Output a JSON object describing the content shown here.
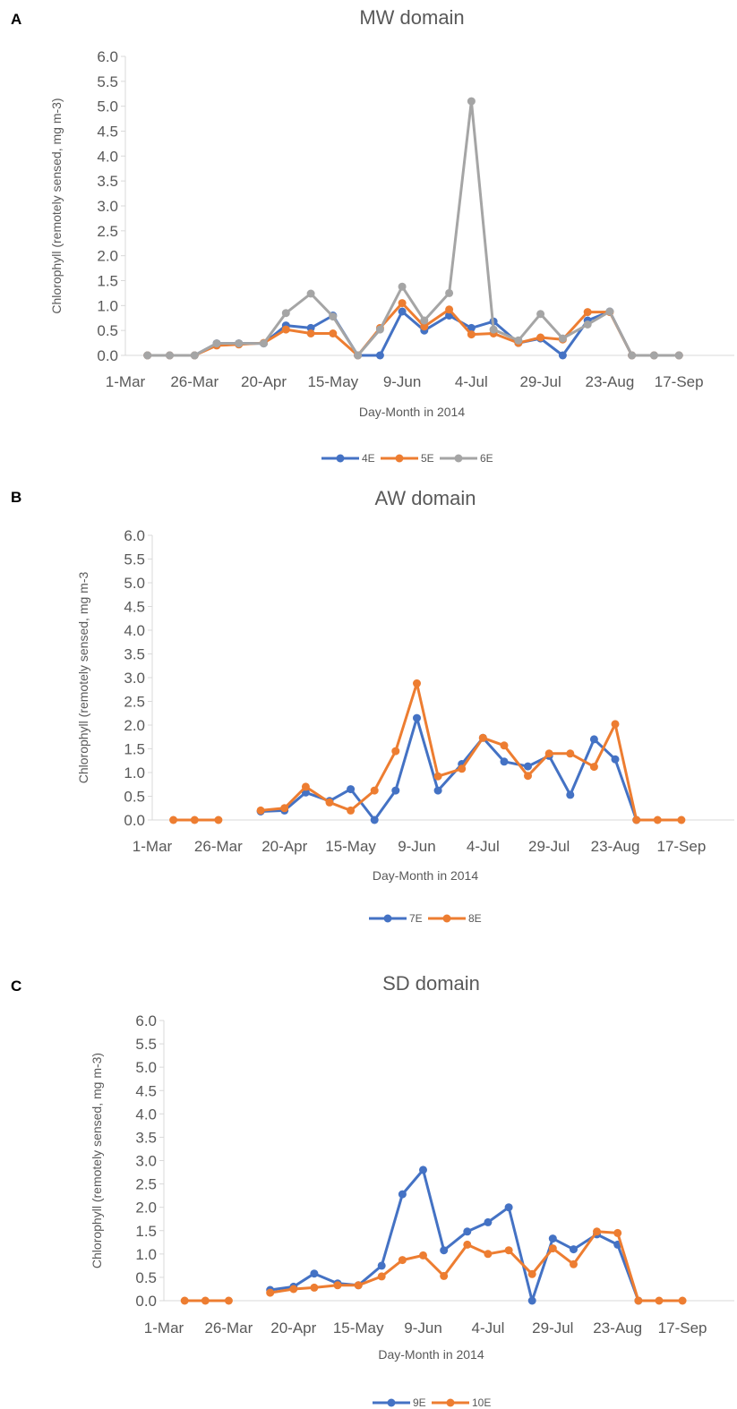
{
  "panels": [
    {
      "letter": "A"
    },
    {
      "letter": "B"
    },
    {
      "letter": "C"
    }
  ],
  "chart_data": [
    {
      "type": "line",
      "title": "MW domain",
      "xlabel": "Day-Month in 2014",
      "ylabel": "Chlorophyll (remotely sensed, mg m-3)",
      "x_tick_labels": [
        "1-Mar",
        "26-Mar",
        "20-Apr",
        "15-May",
        "9-Jun",
        "4-Jul",
        "29-Jul",
        "23-Aug",
        "17-Sep"
      ],
      "y_tick_labels": [
        "0.0",
        "0.5",
        "1.0",
        "1.5",
        "2.0",
        "2.5",
        "3.0",
        "3.5",
        "4.0",
        "4.5",
        "5.0",
        "5.5",
        "6.0"
      ],
      "ylim": [
        0,
        6
      ],
      "xlim": [
        "2014-03-01",
        "2014-10-07"
      ],
      "legend_position": "bottom",
      "grid": false,
      "x": [
        "2014-03-09",
        "2014-03-17",
        "2014-03-26",
        "2014-04-03",
        "2014-04-11",
        "2014-04-20",
        "2014-04-28",
        "2014-05-07",
        "2014-05-15",
        "2014-05-24",
        "2014-06-01",
        "2014-06-09",
        "2014-06-17",
        "2014-06-26",
        "2014-07-04",
        "2014-07-12",
        "2014-07-21",
        "2014-07-29",
        "2014-08-06",
        "2014-08-15",
        "2014-08-23",
        "2014-08-31",
        "2014-09-08",
        "2014-09-17"
      ],
      "series": [
        {
          "name": "4E",
          "color": "#4472C4",
          "values": [
            0.0,
            0.0,
            0.0,
            0.24,
            0.24,
            0.24,
            0.6,
            0.55,
            0.8,
            0.0,
            0.0,
            0.88,
            0.5,
            0.8,
            0.55,
            0.68,
            0.25,
            0.34,
            0.0,
            0.7,
            0.88,
            0.0,
            0.0,
            0.0
          ]
        },
        {
          "name": "5E",
          "color": "#ED7D31",
          "values": [
            0.0,
            0.0,
            0.0,
            0.2,
            0.22,
            0.25,
            0.52,
            0.44,
            0.44,
            0.0,
            0.55,
            1.05,
            0.58,
            0.92,
            0.42,
            0.44,
            0.25,
            0.36,
            0.32,
            0.87,
            0.87,
            0.0,
            0.0,
            0.0
          ]
        },
        {
          "name": "6E",
          "color": "#A5A5A5",
          "values": [
            0.0,
            0.0,
            0.0,
            0.24,
            0.24,
            0.24,
            0.85,
            1.24,
            0.78,
            0.0,
            0.52,
            1.38,
            0.7,
            1.25,
            5.1,
            0.52,
            0.3,
            0.83,
            0.34,
            0.62,
            0.88,
            0.0,
            0.0,
            0.0
          ]
        }
      ]
    },
    {
      "type": "line",
      "title": "AW domain",
      "xlabel": "Day-Month in 2014",
      "ylabel": "Chlorophyll (remotely sensed, mg m-3",
      "x_tick_labels": [
        "1-Mar",
        "26-Mar",
        "20-Apr",
        "15-May",
        "9-Jun",
        "4-Jul",
        "29-Jul",
        "23-Aug",
        "17-Sep"
      ],
      "y_tick_labels": [
        "0.0",
        "0.5",
        "1.0",
        "1.5",
        "2.0",
        "2.5",
        "3.0",
        "3.5",
        "4.0",
        "4.5",
        "5.0",
        "5.5",
        "6.0"
      ],
      "ylim": [
        0,
        6
      ],
      "xlim": [
        "2014-03-01",
        "2014-10-07"
      ],
      "legend_position": "bottom",
      "grid": false,
      "x": [
        "2014-03-09",
        "2014-03-17",
        "2014-03-26",
        "2014-04-03",
        "2014-04-11",
        "2014-04-20",
        "2014-04-28",
        "2014-05-07",
        "2014-05-15",
        "2014-05-24",
        "2014-06-01",
        "2014-06-09",
        "2014-06-17",
        "2014-06-26",
        "2014-07-04",
        "2014-07-12",
        "2014-07-21",
        "2014-07-29",
        "2014-08-06",
        "2014-08-15",
        "2014-08-23",
        "2014-08-31",
        "2014-09-08",
        "2014-09-17"
      ],
      "series": [
        {
          "name": "7E",
          "color": "#4472C4",
          "values": [
            null,
            null,
            null,
            null,
            0.18,
            0.2,
            0.58,
            0.4,
            0.65,
            0.0,
            0.62,
            2.15,
            0.62,
            1.18,
            1.73,
            1.23,
            1.13,
            1.35,
            0.53,
            1.7,
            1.28,
            0.0,
            null,
            null
          ]
        },
        {
          "name": "8E",
          "color": "#ED7D31",
          "values": [
            0.0,
            0.0,
            0.0,
            null,
            0.2,
            0.25,
            0.7,
            0.37,
            0.2,
            0.62,
            1.45,
            2.88,
            0.92,
            1.08,
            1.73,
            1.57,
            0.93,
            1.4,
            1.4,
            1.12,
            2.02,
            0.0,
            0.0,
            0.0
          ]
        }
      ]
    },
    {
      "type": "line",
      "title": "SD domain",
      "xlabel": "Day-Month in 2014",
      "ylabel": "Chlorophyll (remotely sensed, mg m-3)",
      "x_tick_labels": [
        "1-Mar",
        "26-Mar",
        "20-Apr",
        "15-May",
        "9-Jun",
        "4-Jul",
        "29-Jul",
        "23-Aug",
        "17-Sep"
      ],
      "y_tick_labels": [
        "0.0",
        "0.5",
        "1.0",
        "1.5",
        "2.0",
        "2.5",
        "3.0",
        "3.5",
        "4.0",
        "4.5",
        "5.0",
        "5.5",
        "6.0"
      ],
      "ylim": [
        0,
        6
      ],
      "xlim": [
        "2014-03-01",
        "2014-10-07"
      ],
      "legend_position": "bottom",
      "grid": false,
      "x": [
        "2014-03-09",
        "2014-03-17",
        "2014-03-26",
        "2014-04-03",
        "2014-04-11",
        "2014-04-20",
        "2014-04-28",
        "2014-05-07",
        "2014-05-15",
        "2014-05-24",
        "2014-06-01",
        "2014-06-09",
        "2014-06-17",
        "2014-06-26",
        "2014-07-04",
        "2014-07-12",
        "2014-07-21",
        "2014-07-29",
        "2014-08-06",
        "2014-08-15",
        "2014-08-23",
        "2014-08-31",
        "2014-09-08",
        "2014-09-17"
      ],
      "series": [
        {
          "name": "9E",
          "color": "#4472C4",
          "values": [
            null,
            null,
            null,
            null,
            0.23,
            0.3,
            0.58,
            0.37,
            0.33,
            0.75,
            2.28,
            2.8,
            1.08,
            1.48,
            1.68,
            2.0,
            0.0,
            1.33,
            1.1,
            1.42,
            1.2,
            0.0,
            null,
            null
          ]
        },
        {
          "name": "10E",
          "color": "#ED7D31",
          "values": [
            0.0,
            0.0,
            0.0,
            null,
            0.17,
            0.25,
            0.28,
            0.33,
            0.33,
            0.52,
            0.87,
            0.97,
            0.53,
            1.2,
            1.0,
            1.08,
            0.57,
            1.12,
            0.78,
            1.48,
            1.45,
            0.0,
            0.0,
            0.0
          ]
        }
      ]
    }
  ]
}
